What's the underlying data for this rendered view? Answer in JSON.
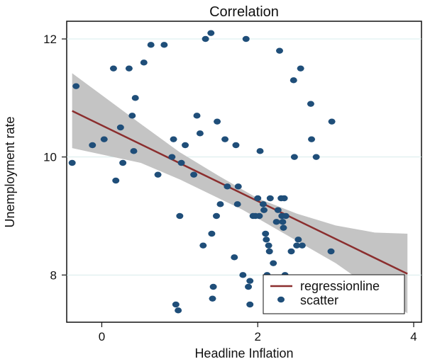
{
  "chart_data": {
    "type": "scatter",
    "title": "Correlation",
    "xlabel": "Headline Inflation",
    "ylabel": "Unemployment rate",
    "xlim": [
      -0.45,
      4.1
    ],
    "ylim": [
      7.2,
      12.3
    ],
    "x_ticks": [
      0,
      2,
      4
    ],
    "y_ticks": [
      8,
      10,
      12
    ],
    "grid": true,
    "legend_position": "bottom-right",
    "colors": {
      "scatter": "#1f4e79",
      "regression": "#8b2e2e",
      "confidence_band": "#c4c4c4",
      "grid": "#d7ecec"
    },
    "series": [
      {
        "name": "scatter",
        "kind": "scatter",
        "points": [
          [
            -0.38,
            9.9
          ],
          [
            -0.33,
            11.2
          ],
          [
            -0.12,
            10.2
          ],
          [
            0.03,
            10.3
          ],
          [
            0.15,
            11.5
          ],
          [
            0.18,
            9.6
          ],
          [
            0.24,
            10.5
          ],
          [
            0.27,
            9.9
          ],
          [
            0.35,
            11.5
          ],
          [
            0.39,
            10.7
          ],
          [
            0.41,
            10.1
          ],
          [
            0.43,
            11.0
          ],
          [
            0.54,
            11.6
          ],
          [
            0.63,
            11.9
          ],
          [
            0.72,
            9.7
          ],
          [
            0.8,
            11.9
          ],
          [
            0.9,
            10.0
          ],
          [
            0.92,
            10.3
          ],
          [
            0.95,
            7.5
          ],
          [
            0.98,
            7.4
          ],
          [
            1.0,
            9.0
          ],
          [
            1.02,
            9.9
          ],
          [
            1.07,
            10.2
          ],
          [
            1.18,
            9.7
          ],
          [
            1.22,
            10.7
          ],
          [
            1.26,
            10.4
          ],
          [
            1.3,
            8.5
          ],
          [
            1.33,
            12.0
          ],
          [
            1.4,
            12.1
          ],
          [
            1.41,
            8.7
          ],
          [
            1.42,
            7.6
          ],
          [
            1.43,
            7.8
          ],
          [
            1.47,
            9.0
          ],
          [
            1.48,
            10.6
          ],
          [
            1.52,
            9.2
          ],
          [
            1.58,
            10.3
          ],
          [
            1.61,
            9.5
          ],
          [
            1.7,
            8.3
          ],
          [
            1.72,
            10.2
          ],
          [
            1.74,
            9.2
          ],
          [
            1.75,
            9.5
          ],
          [
            1.81,
            8.0
          ],
          [
            1.85,
            12.0
          ],
          [
            1.88,
            7.8
          ],
          [
            1.9,
            7.9
          ],
          [
            1.9,
            7.5
          ],
          [
            1.94,
            9.0
          ],
          [
            1.97,
            9.0
          ],
          [
            2.0,
            9.3
          ],
          [
            2.02,
            9.0
          ],
          [
            2.03,
            10.1
          ],
          [
            2.07,
            9.2
          ],
          [
            2.08,
            9.1
          ],
          [
            2.1,
            8.7
          ],
          [
            2.11,
            8.6
          ],
          [
            2.12,
            8.0
          ],
          [
            2.14,
            8.5
          ],
          [
            2.15,
            8.4
          ],
          [
            2.16,
            9.3
          ],
          [
            2.2,
            8.2
          ],
          [
            2.24,
            8.9
          ],
          [
            2.26,
            9.1
          ],
          [
            2.28,
            11.8
          ],
          [
            2.3,
            9.3
          ],
          [
            2.31,
            9.0
          ],
          [
            2.32,
            8.9
          ],
          [
            2.33,
            8.8
          ],
          [
            2.34,
            9.3
          ],
          [
            2.35,
            8.0
          ],
          [
            2.36,
            9.0
          ],
          [
            2.43,
            8.4
          ],
          [
            2.46,
            11.3
          ],
          [
            2.47,
            10.0
          ],
          [
            2.5,
            8.5
          ],
          [
            2.52,
            8.6
          ],
          [
            2.55,
            11.5
          ],
          [
            2.57,
            8.5
          ],
          [
            2.68,
            10.9
          ],
          [
            2.69,
            10.3
          ],
          [
            2.75,
            10.0
          ],
          [
            2.94,
            8.4
          ],
          [
            2.95,
            10.6
          ]
        ]
      },
      {
        "name": "regressionline",
        "kind": "line",
        "points": [
          [
            -0.38,
            10.78
          ],
          [
            3.92,
            8.02
          ]
        ]
      }
    ],
    "confidence_band": {
      "x": [
        -0.38,
        0.5,
        1.0,
        1.5,
        1.8,
        2.0,
        2.5,
        3.0,
        3.5,
        3.92
      ],
      "upper": [
        11.42,
        10.56,
        10.08,
        9.68,
        9.45,
        9.3,
        9.04,
        8.84,
        8.72,
        8.7
      ],
      "lower": [
        10.15,
        9.9,
        9.62,
        9.3,
        9.11,
        8.96,
        8.58,
        8.2,
        7.74,
        7.35
      ]
    }
  }
}
